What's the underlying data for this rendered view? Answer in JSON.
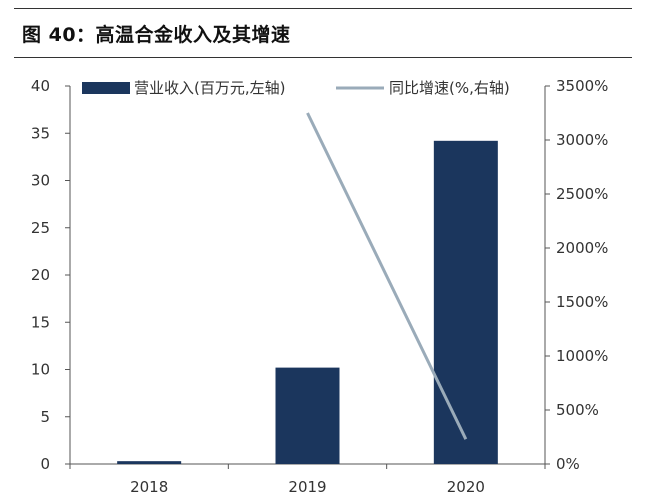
{
  "title": "图 40：高温合金收入及其增速",
  "colors": {
    "bar": "#1b365d",
    "line": "#9aabb9",
    "axis": "#555555",
    "text": "#333333"
  },
  "chart_data": {
    "type": "bar",
    "categories": [
      "2018",
      "2019",
      "2020"
    ],
    "series": [
      {
        "name": "营业收入(百万元,左轴)",
        "type": "bar",
        "axis": "left",
        "values": [
          0.3,
          10.2,
          34.2
        ]
      },
      {
        "name": "同比增速(%,右轴)",
        "type": "line",
        "axis": "right",
        "values": [
          null,
          3250,
          230
        ]
      }
    ],
    "ylim_left": [
      0,
      40
    ],
    "yticks_left": [
      "0",
      "5",
      "10",
      "15",
      "20",
      "25",
      "30",
      "35",
      "40"
    ],
    "ylim_right": [
      0,
      3500
    ],
    "yticks_right": [
      "0%",
      "500%",
      "1000%",
      "1500%",
      "2000%",
      "2500%",
      "3000%",
      "3500%"
    ],
    "grid": false,
    "legend": "top"
  }
}
